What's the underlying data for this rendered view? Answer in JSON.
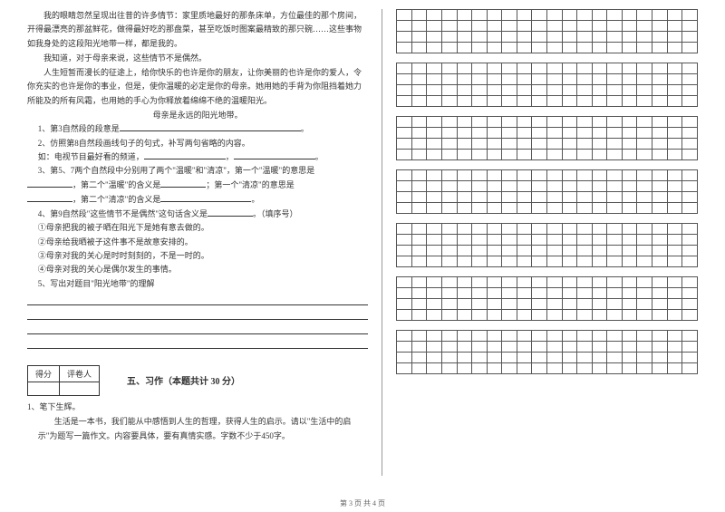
{
  "passage": {
    "p1": "我的眼睛忽然呈现出往昔的许多情节：家里质地最好的那条床单，方位最佳的那个房间，开得最漂亮的那盆鲜花，做得最好吃的那盘菜，甚至吃饭时图案最精致的那只碗……这些事物如我身处的这段阳光地带一样，都是我的。",
    "p2": "我知道，对于母亲来说，这些情节不是偶然。",
    "p3": "人生短暂而漫长的征途上，给你快乐的也许是你的朋友，让你美丽的也许是你的爱人，令你充实的也许是你的事业，但是，使你温暖的必定是你的母亲。她用她的手背为你阻挡着她力所能及的所有风霜，也用她的手心为你释放着绵绵不绝的温暖阳光。",
    "p4": "母亲是永远的阳光地带。"
  },
  "questions": {
    "q1": "1、第3自然段的段意是",
    "q1_tail": "。",
    "q2": "2、仿照第8自然段画线句子的句式，补写两句省略的内容。",
    "q2_ex": "如：电视节目最好看的频道，",
    "q3_a": "3、第5、7两个自然段中分别用了两个\"温暖\"和\"清凉\"，第一个\"温暖\"的意思是",
    "q3_b": "，第二个\"温暖\"的含义是",
    "q3_c": "；第一个\"清凉\"的意思是",
    "q3_d": "，第二个\"清凉\"的含义是",
    "q3_tail": "。",
    "q4": "4、第9自然段\"这些情节不是偶然\"这句话含义是",
    "q4_tail": "。（填序号）",
    "q4_opt1": "①母亲把我的被子晒在阳光下是她有意去做的。",
    "q4_opt2": "②母亲给我晒被子这件事不是故意安排的。",
    "q4_opt3": "③母亲对我的关心是时时刻刻的，不是一时的。",
    "q4_opt4": "④母亲对我的关心是偶尔发生的事情。",
    "q5": "5、写出对题目\"阳光地带\"的理解"
  },
  "score_table": {
    "h1": "得分",
    "h2": "评卷人"
  },
  "section5": {
    "title": "五、习作（本题共计 30 分）",
    "q1_label": "1、笔下生辉。",
    "q1_body": "生活是一本书，我们能从中感悟到人生的哲理，获得人生的启示。请以\"生活中的启示\"为题写一篇作文。内容要具体，要有真情实感。字数不少于450字。"
  },
  "grid": {
    "blocks": 7,
    "rows_per_block": 4,
    "cols": 20
  },
  "footer": "第 3 页  共 4 页"
}
